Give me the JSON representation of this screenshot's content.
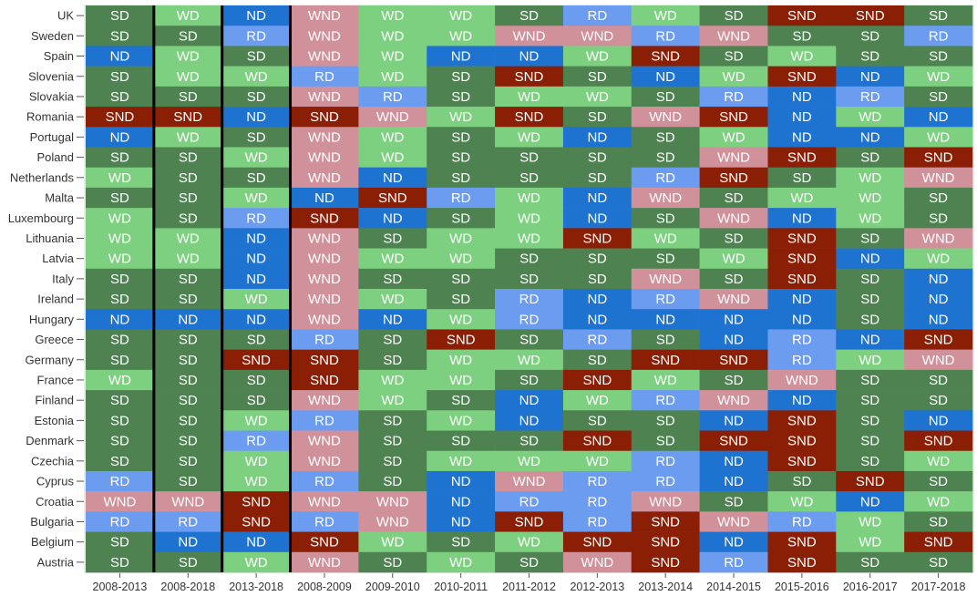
{
  "chart_data": {
    "type": "heatmap",
    "columns": [
      "2008-2013",
      "2008-2018",
      "2013-2018",
      "2008-2009",
      "2009-2010",
      "2010-2011",
      "2011-2012",
      "2012-2013",
      "2013-2014",
      "2014-2015",
      "2015-2016",
      "2016-2017",
      "2017-2018"
    ],
    "rows": [
      {
        "country": "UK",
        "values": [
          "SD",
          "WD",
          "ND",
          "WND",
          "WD",
          "WD",
          "SD",
          "RD",
          "WD",
          "SD",
          "SND",
          "SND",
          "SD"
        ]
      },
      {
        "country": "Sweden",
        "values": [
          "SD",
          "SD",
          "RD",
          "WND",
          "WD",
          "WD",
          "WND",
          "WND",
          "RD",
          "WND",
          "SD",
          "SD",
          "RD"
        ]
      },
      {
        "country": "Spain",
        "values": [
          "ND",
          "WD",
          "SD",
          "WND",
          "WD",
          "ND",
          "ND",
          "WD",
          "SND",
          "SD",
          "WD",
          "SD",
          "SD"
        ]
      },
      {
        "country": "Slovenia",
        "values": [
          "SD",
          "WD",
          "WD",
          "RD",
          "WD",
          "SD",
          "SND",
          "SD",
          "ND",
          "WD",
          "SND",
          "ND",
          "WD"
        ]
      },
      {
        "country": "Slovakia",
        "values": [
          "SD",
          "SD",
          "SD",
          "WND",
          "RD",
          "SD",
          "WD",
          "WD",
          "SD",
          "RD",
          "ND",
          "RD",
          "SD"
        ]
      },
      {
        "country": "Romania",
        "values": [
          "SND",
          "SND",
          "ND",
          "SND",
          "WND",
          "WD",
          "SND",
          "SD",
          "WND",
          "SND",
          "ND",
          "WD",
          "ND"
        ]
      },
      {
        "country": "Portugal",
        "values": [
          "ND",
          "WD",
          "SD",
          "WND",
          "WD",
          "SD",
          "WD",
          "ND",
          "SD",
          "WD",
          "ND",
          "ND",
          "WD"
        ]
      },
      {
        "country": "Poland",
        "values": [
          "SD",
          "SD",
          "WD",
          "WND",
          "WD",
          "SD",
          "SD",
          "SD",
          "SD",
          "WND",
          "SND",
          "SD",
          "SND"
        ]
      },
      {
        "country": "Netherlands",
        "values": [
          "WD",
          "SD",
          "SD",
          "WND",
          "ND",
          "SD",
          "SD",
          "SD",
          "RD",
          "SND",
          "SD",
          "WD",
          "WND"
        ]
      },
      {
        "country": "Malta",
        "values": [
          "SD",
          "SD",
          "WD",
          "ND",
          "SND",
          "RD",
          "WD",
          "ND",
          "WND",
          "SD",
          "WD",
          "WD",
          "SD"
        ]
      },
      {
        "country": "Luxembourg",
        "values": [
          "WD",
          "SD",
          "RD",
          "SND",
          "ND",
          "SD",
          "WD",
          "ND",
          "SD",
          "WND",
          "ND",
          "WD",
          "SD"
        ]
      },
      {
        "country": "Lithuania",
        "values": [
          "WD",
          "WD",
          "ND",
          "WND",
          "SD",
          "WD",
          "WD",
          "SND",
          "WD",
          "SD",
          "SND",
          "SD",
          "WND"
        ]
      },
      {
        "country": "Latvia",
        "values": [
          "WD",
          "WD",
          "ND",
          "WND",
          "WD",
          "WD",
          "SD",
          "SD",
          "SD",
          "WD",
          "SND",
          "ND",
          "WD"
        ]
      },
      {
        "country": "Italy",
        "values": [
          "SD",
          "SD",
          "ND",
          "WND",
          "SD",
          "SD",
          "SD",
          "SD",
          "WND",
          "SD",
          "SND",
          "SD",
          "ND"
        ]
      },
      {
        "country": "Ireland",
        "values": [
          "SD",
          "SD",
          "WD",
          "WND",
          "WD",
          "SD",
          "RD",
          "ND",
          "RD",
          "WND",
          "ND",
          "SD",
          "ND"
        ]
      },
      {
        "country": "Hungary",
        "values": [
          "ND",
          "ND",
          "ND",
          "WND",
          "ND",
          "WD",
          "RD",
          "ND",
          "ND",
          "ND",
          "ND",
          "SD",
          "ND"
        ]
      },
      {
        "country": "Greece",
        "values": [
          "SD",
          "SD",
          "SD",
          "RD",
          "SD",
          "SND",
          "SD",
          "RD",
          "SD",
          "ND",
          "RD",
          "ND",
          "SND"
        ]
      },
      {
        "country": "Germany",
        "values": [
          "SD",
          "SD",
          "SND",
          "SND",
          "SD",
          "WD",
          "WD",
          "SD",
          "SND",
          "SND",
          "RD",
          "WD",
          "WND"
        ]
      },
      {
        "country": "France",
        "values": [
          "WD",
          "SD",
          "SD",
          "SND",
          "WD",
          "WD",
          "SD",
          "SND",
          "WD",
          "SD",
          "WND",
          "SD",
          "SD"
        ]
      },
      {
        "country": "Finland",
        "values": [
          "SD",
          "SD",
          "SD",
          "WND",
          "WD",
          "SD",
          "ND",
          "WD",
          "RD",
          "WND",
          "ND",
          "SD",
          "SD"
        ]
      },
      {
        "country": "Estonia",
        "values": [
          "SD",
          "SD",
          "WD",
          "RD",
          "SD",
          "WD",
          "ND",
          "SD",
          "SD",
          "ND",
          "SND",
          "SD",
          "ND"
        ]
      },
      {
        "country": "Denmark",
        "values": [
          "SD",
          "SD",
          "RD",
          "WND",
          "SD",
          "SD",
          "SD",
          "SND",
          "SD",
          "SND",
          "SND",
          "SD",
          "SND"
        ]
      },
      {
        "country": "Czechia",
        "values": [
          "SD",
          "SD",
          "WD",
          "WND",
          "SD",
          "WD",
          "WD",
          "WD",
          "RD",
          "ND",
          "SND",
          "SD",
          "WD"
        ]
      },
      {
        "country": "Cyprus",
        "values": [
          "RD",
          "SD",
          "WD",
          "RD",
          "SD",
          "ND",
          "WND",
          "RD",
          "RD",
          "ND",
          "SD",
          "SND",
          "SD"
        ]
      },
      {
        "country": "Croatia",
        "values": [
          "WND",
          "WND",
          "SND",
          "WND",
          "WND",
          "ND",
          "RD",
          "RD",
          "WND",
          "SD",
          "WD",
          "ND",
          "WD"
        ]
      },
      {
        "country": "Bulgaria",
        "values": [
          "RD",
          "RD",
          "SND",
          "RD",
          "WND",
          "ND",
          "SND",
          "RD",
          "SND",
          "WND",
          "RD",
          "WD",
          "SD"
        ]
      },
      {
        "country": "Belgium",
        "values": [
          "SD",
          "ND",
          "ND",
          "SND",
          "WD",
          "SD",
          "WD",
          "SND",
          "SND",
          "ND",
          "SND",
          "WD",
          "SND"
        ]
      },
      {
        "country": "Austria",
        "values": [
          "SD",
          "SD",
          "WD",
          "WND",
          "SD",
          "WD",
          "SD",
          "WND",
          "SND",
          "RD",
          "SND",
          "SD",
          "SD"
        ]
      }
    ],
    "colors": {
      "SD": "#4e8250",
      "WD": "#7dd07f",
      "ND": "#1d73cf",
      "RD": "#6c9cf0",
      "WND": "#d0919b",
      "SND": "#8b1f06"
    },
    "separators_after_columns": [
      0,
      1,
      2
    ],
    "grid": false,
    "legend": "none"
  }
}
